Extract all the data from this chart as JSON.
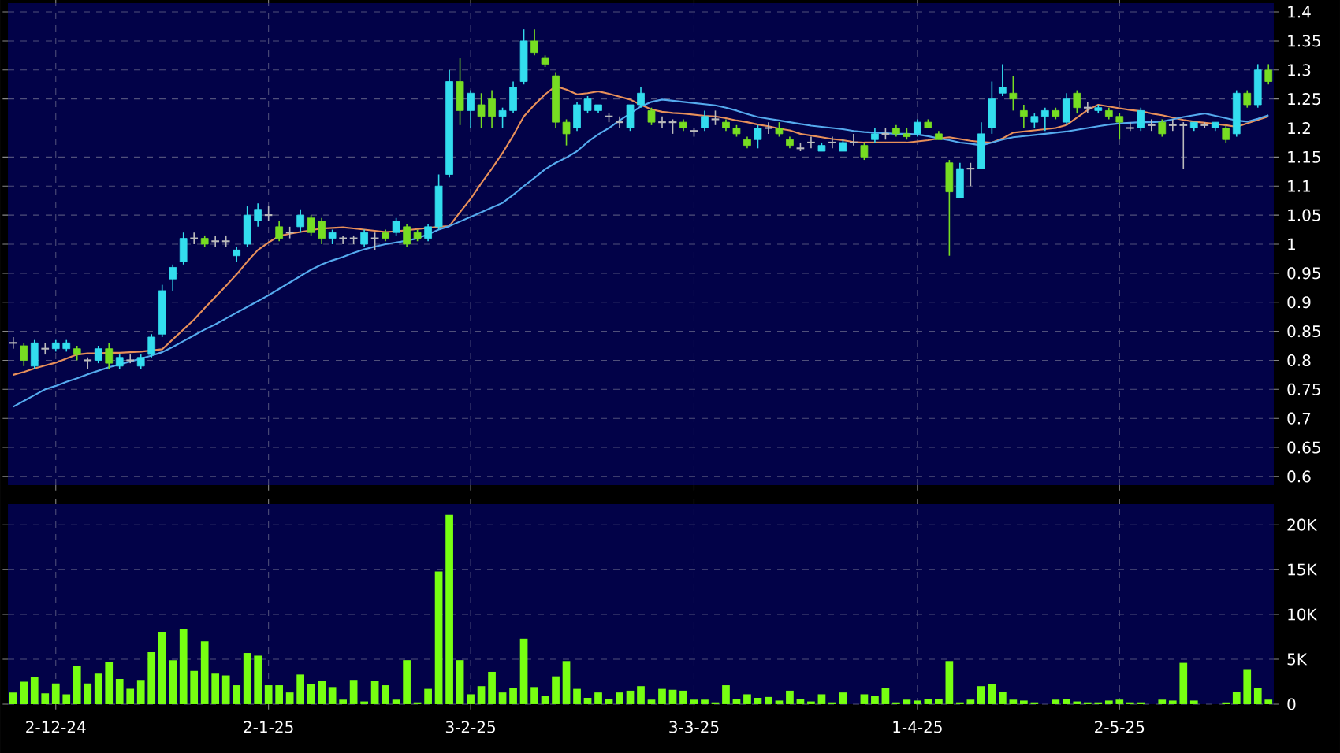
{
  "chart_data": [
    {
      "type": "candlestick",
      "tick_labels": "y",
      "grid": true,
      "ylim": [
        0.585,
        1.415
      ],
      "yticks": [
        0.6,
        0.65,
        0.7,
        0.75,
        0.8,
        0.85,
        0.9,
        0.95,
        1,
        1.05,
        1.1,
        1.15,
        1.2,
        1.25,
        1.3,
        1.35,
        1.4
      ],
      "categories": [
        null,
        null,
        null,
        null,
        null,
        null,
        null,
        null,
        null,
        null,
        null,
        null,
        null,
        null,
        null,
        null,
        null,
        null,
        null,
        null,
        null,
        null,
        null,
        null,
        null,
        null,
        null,
        null,
        null,
        null,
        null,
        null,
        null,
        null,
        null,
        null,
        null,
        null,
        null,
        null,
        null,
        null,
        null,
        null,
        null,
        null,
        null,
        null,
        null,
        null,
        null,
        null,
        null,
        null,
        null,
        null,
        null,
        null,
        null,
        null,
        null,
        null,
        null,
        null,
        null,
        null,
        null,
        null,
        null,
        null,
        null,
        null,
        null,
        null,
        null,
        null,
        null,
        null,
        null,
        null,
        null,
        null,
        null,
        null,
        null,
        null,
        null,
        null,
        null,
        null,
        null,
        null,
        null,
        null,
        null,
        null,
        null,
        null,
        null,
        null,
        null,
        null,
        null,
        null,
        null,
        null,
        null,
        null,
        null,
        null,
        null,
        null,
        null,
        null,
        null,
        null,
        null,
        null,
        null
      ],
      "ohlc": [
        [
          0.83,
          0.84,
          0.82,
          0.83
        ],
        [
          0.825,
          0.83,
          0.79,
          0.8
        ],
        [
          0.79,
          0.835,
          0.785,
          0.83
        ],
        [
          0.82,
          0.83,
          0.81,
          0.82
        ],
        [
          0.82,
          0.835,
          0.815,
          0.83
        ],
        [
          0.82,
          0.835,
          0.815,
          0.83
        ],
        [
          0.82,
          0.825,
          0.8,
          0.81
        ],
        [
          0.8,
          0.805,
          0.785,
          0.8
        ],
        [
          0.8,
          0.825,
          0.795,
          0.82
        ],
        [
          0.82,
          0.83,
          0.785,
          0.795
        ],
        [
          0.79,
          0.81,
          0.785,
          0.805
        ],
        [
          0.8,
          0.81,
          0.795,
          0.8
        ],
        [
          0.79,
          0.81,
          0.785,
          0.805
        ],
        [
          0.81,
          0.845,
          0.805,
          0.84
        ],
        [
          0.845,
          0.93,
          0.84,
          0.92
        ],
        [
          0.94,
          0.965,
          0.92,
          0.96
        ],
        [
          0.97,
          1.02,
          0.965,
          1.01
        ],
        [
          1.01,
          1.02,
          1.0,
          1.01
        ],
        [
          1.01,
          1.015,
          0.995,
          1.0
        ],
        [
          1.005,
          1.015,
          0.995,
          1.005
        ],
        [
          1.005,
          1.015,
          0.995,
          1.005
        ],
        [
          0.98,
          0.995,
          0.97,
          0.99
        ],
        [
          1.0,
          1.065,
          0.995,
          1.05
        ],
        [
          1.04,
          1.07,
          1.03,
          1.06
        ],
        [
          1.05,
          1.065,
          1.04,
          1.05
        ],
        [
          1.03,
          1.04,
          1.005,
          1.01
        ],
        [
          1.02,
          1.03,
          1.01,
          1.02
        ],
        [
          1.03,
          1.06,
          1.02,
          1.05
        ],
        [
          1.045,
          1.05,
          1.015,
          1.02
        ],
        [
          1.04,
          1.045,
          1.0,
          1.01
        ],
        [
          1.01,
          1.025,
          1.0,
          1.02
        ],
        [
          1.01,
          1.015,
          1.0,
          1.01
        ],
        [
          1.01,
          1.015,
          1.0,
          1.01
        ],
        [
          1.0,
          1.025,
          0.995,
          1.02
        ],
        [
          1.01,
          1.02,
          0.99,
          1.01
        ],
        [
          1.02,
          1.025,
          1.005,
          1.01
        ],
        [
          1.02,
          1.045,
          1.015,
          1.04
        ],
        [
          1.03,
          1.035,
          0.995,
          1.0
        ],
        [
          1.02,
          1.025,
          1.005,
          1.01
        ],
        [
          1.01,
          1.035,
          1.005,
          1.03
        ],
        [
          1.03,
          1.12,
          1.025,
          1.1
        ],
        [
          1.12,
          1.3,
          1.115,
          1.28
        ],
        [
          1.28,
          1.32,
          1.205,
          1.23
        ],
        [
          1.23,
          1.265,
          1.2,
          1.26
        ],
        [
          1.24,
          1.26,
          1.2,
          1.22
        ],
        [
          1.25,
          1.265,
          1.2,
          1.22
        ],
        [
          1.22,
          1.235,
          1.2,
          1.23
        ],
        [
          1.23,
          1.28,
          1.225,
          1.27
        ],
        [
          1.28,
          1.37,
          1.275,
          1.35
        ],
        [
          1.35,
          1.37,
          1.325,
          1.33
        ],
        [
          1.32,
          1.325,
          1.305,
          1.31
        ],
        [
          1.29,
          1.295,
          1.2,
          1.21
        ],
        [
          1.21,
          1.215,
          1.17,
          1.19
        ],
        [
          1.2,
          1.245,
          1.195,
          1.24
        ],
        [
          1.23,
          1.255,
          1.225,
          1.25
        ],
        [
          1.23,
          1.24,
          1.225,
          1.24
        ],
        [
          1.22,
          1.225,
          1.21,
          1.22
        ],
        [
          1.21,
          1.22,
          1.2,
          1.21
        ],
        [
          1.2,
          1.24,
          1.195,
          1.24
        ],
        [
          1.24,
          1.27,
          1.235,
          1.26
        ],
        [
          1.23,
          1.235,
          1.205,
          1.21
        ],
        [
          1.21,
          1.22,
          1.2,
          1.21
        ],
        [
          1.21,
          1.215,
          1.19,
          1.21
        ],
        [
          1.21,
          1.215,
          1.195,
          1.2
        ],
        [
          1.195,
          1.2,
          1.185,
          1.195
        ],
        [
          1.2,
          1.23,
          1.195,
          1.22
        ],
        [
          1.215,
          1.23,
          1.205,
          1.215
        ],
        [
          1.21,
          1.215,
          1.195,
          1.2
        ],
        [
          1.2,
          1.205,
          1.185,
          1.19
        ],
        [
          1.18,
          1.185,
          1.165,
          1.17
        ],
        [
          1.18,
          1.205,
          1.165,
          1.2
        ],
        [
          1.2,
          1.21,
          1.19,
          1.2
        ],
        [
          1.2,
          1.21,
          1.185,
          1.19
        ],
        [
          1.18,
          1.185,
          1.165,
          1.17
        ],
        [
          1.165,
          1.175,
          1.16,
          1.165
        ],
        [
          1.175,
          1.185,
          1.165,
          1.175
        ],
        [
          1.16,
          1.175,
          1.16,
          1.17
        ],
        [
          1.175,
          1.185,
          1.165,
          1.175
        ],
        [
          1.16,
          1.18,
          1.16,
          1.175
        ],
        [
          1.175,
          1.19,
          1.17,
          1.175
        ],
        [
          1.17,
          1.175,
          1.145,
          1.15
        ],
        [
          1.18,
          1.2,
          1.175,
          1.19
        ],
        [
          1.19,
          1.2,
          1.18,
          1.19
        ],
        [
          1.2,
          1.205,
          1.185,
          1.19
        ],
        [
          1.19,
          1.2,
          1.18,
          1.185
        ],
        [
          1.19,
          1.215,
          1.185,
          1.21
        ],
        [
          1.21,
          1.215,
          1.2,
          1.2
        ],
        [
          1.19,
          1.195,
          1.18,
          1.18
        ],
        [
          1.14,
          1.145,
          0.98,
          1.09
        ],
        [
          1.08,
          1.14,
          1.08,
          1.13
        ],
        [
          1.13,
          1.14,
          1.1,
          1.13
        ],
        [
          1.13,
          1.21,
          1.13,
          1.19
        ],
        [
          1.2,
          1.28,
          1.19,
          1.25
        ],
        [
          1.26,
          1.31,
          1.255,
          1.27
        ],
        [
          1.26,
          1.29,
          1.23,
          1.25
        ],
        [
          1.23,
          1.24,
          1.2,
          1.22
        ],
        [
          1.21,
          1.225,
          1.2,
          1.22
        ],
        [
          1.22,
          1.235,
          1.195,
          1.23
        ],
        [
          1.23,
          1.235,
          1.215,
          1.22
        ],
        [
          1.21,
          1.26,
          1.205,
          1.25
        ],
        [
          1.26,
          1.265,
          1.225,
          1.235
        ],
        [
          1.235,
          1.245,
          1.225,
          1.235
        ],
        [
          1.23,
          1.24,
          1.225,
          1.235
        ],
        [
          1.23,
          1.235,
          1.215,
          1.22
        ],
        [
          1.22,
          1.225,
          1.18,
          1.21
        ],
        [
          1.2,
          1.21,
          1.195,
          1.2
        ],
        [
          1.2,
          1.235,
          1.195,
          1.23
        ],
        [
          1.205,
          1.215,
          1.195,
          1.205
        ],
        [
          1.21,
          1.215,
          1.185,
          1.19
        ],
        [
          1.205,
          1.215,
          1.195,
          1.205
        ],
        [
          1.205,
          1.21,
          1.13,
          1.205
        ],
        [
          1.2,
          1.21,
          1.195,
          1.21
        ],
        [
          1.205,
          1.21,
          1.2,
          1.205
        ],
        [
          1.2,
          1.21,
          1.195,
          1.21
        ],
        [
          1.2,
          1.205,
          1.175,
          1.18
        ],
        [
          1.19,
          1.265,
          1.185,
          1.26
        ],
        [
          1.26,
          1.265,
          1.235,
          1.24
        ],
        [
          1.24,
          1.31,
          1.235,
          1.3
        ],
        [
          1.3,
          1.31,
          1.275,
          1.28
        ]
      ],
      "colors": [
        "#bbbbbb",
        "#77dd22",
        "#33ddee",
        "#bbbbbb",
        "#33ddee",
        "#33ddee",
        "#77dd22",
        "#bbbbbb",
        "#33ddee",
        "#77dd22",
        "#33ddee",
        "#bbbbbb",
        "#33ddee",
        "#33ddee",
        "#33ddee",
        "#33ddee",
        "#33ddee",
        "#bbbbbb",
        "#77dd22",
        "#bbbbbb",
        "#bbbbbb",
        "#33ddee",
        "#33ddee",
        "#33ddee",
        "#bbbbbb",
        "#77dd22",
        "#bbbbbb",
        "#33ddee",
        "#77dd22",
        "#77dd22",
        "#33ddee",
        "#bbbbbb",
        "#bbbbbb",
        "#33ddee",
        "#bbbbbb",
        "#77dd22",
        "#33ddee",
        "#77dd22",
        "#77dd22",
        "#33ddee",
        "#33ddee",
        "#33ddee",
        "#77dd22",
        "#33ddee",
        "#77dd22",
        "#77dd22",
        "#33ddee",
        "#33ddee",
        "#33ddee",
        "#77dd22",
        "#77dd22",
        "#77dd22",
        "#77dd22",
        "#33ddee",
        "#33ddee",
        "#33ddee",
        "#bbbbbb",
        "#bbbbbb",
        "#33ddee",
        "#33ddee",
        "#77dd22",
        "#bbbbbb",
        "#bbbbbb",
        "#77dd22",
        "#bbbbbb",
        "#33ddee",
        "#bbbbbb",
        "#77dd22",
        "#77dd22",
        "#77dd22",
        "#33ddee",
        "#bbbbbb",
        "#77dd22",
        "#77dd22",
        "#bbbbbb",
        "#bbbbbb",
        "#33ddee",
        "#bbbbbb",
        "#33ddee",
        "#bbbbbb",
        "#77dd22",
        "#33ddee",
        "#bbbbbb",
        "#77dd22",
        "#77dd22",
        "#33ddee",
        "#77dd22",
        "#77dd22",
        "#77dd22",
        "#33ddee",
        "#bbbbbb",
        "#33ddee",
        "#33ddee",
        "#33ddee",
        "#77dd22",
        "#77dd22",
        "#33ddee",
        "#33ddee",
        "#77dd22",
        "#33ddee",
        "#77dd22",
        "#bbbbbb",
        "#33ddee",
        "#77dd22",
        "#77dd22",
        "#bbbbbb",
        "#33ddee",
        "#bbbbbb",
        "#77dd22",
        "#bbbbbb",
        "#bbbbbb",
        "#33ddee",
        "#bbbbbb",
        "#33ddee",
        "#77dd22",
        "#33ddee",
        "#77dd22",
        "#33ddee",
        "#77dd22"
      ],
      "series": [
        {
          "type": "line",
          "color": "#e8905a",
          "values": [
            0.775,
            0.78,
            0.786,
            0.791,
            0.796,
            0.803,
            0.81,
            0.812,
            0.812,
            0.813,
            0.813,
            0.814,
            0.815,
            0.817,
            0.819,
            0.836,
            0.853,
            0.87,
            0.89,
            0.909,
            0.928,
            0.948,
            0.97,
            0.99,
            1.003,
            1.014,
            1.018,
            1.021,
            1.024,
            1.027,
            1.028,
            1.029,
            1.027,
            1.025,
            1.023,
            1.021,
            1.022,
            1.024,
            1.026,
            1.028,
            1.03,
            1.031,
            1.055,
            1.078,
            1.105,
            1.13,
            1.157,
            1.187,
            1.22,
            1.24,
            1.258,
            1.272,
            1.266,
            1.258,
            1.26,
            1.263,
            1.259,
            1.254,
            1.249,
            1.24,
            1.232,
            1.228,
            1.226,
            1.225,
            1.223,
            1.221,
            1.22,
            1.217,
            1.213,
            1.21,
            1.206,
            1.203,
            1.199,
            1.196,
            1.19,
            1.187,
            1.184,
            1.181,
            1.179,
            1.176,
            1.175,
            1.175,
            1.175,
            1.175,
            1.175,
            1.177,
            1.179,
            1.182,
            1.184,
            1.181,
            1.178,
            1.176,
            1.175,
            1.182,
            1.192,
            1.194,
            1.196,
            1.198,
            1.2,
            1.205,
            1.218,
            1.231,
            1.24,
            1.237,
            1.234,
            1.231,
            1.229,
            1.225,
            1.222,
            1.218,
            1.214,
            1.211,
            1.209,
            1.207,
            1.205,
            1.202,
            1.208,
            1.214,
            1.22
          ]
        },
        {
          "type": "line",
          "color": "#55aaee",
          "values": [
            0.72,
            0.73,
            0.74,
            0.75,
            0.756,
            0.763,
            0.769,
            0.776,
            0.782,
            0.788,
            0.793,
            0.798,
            0.803,
            0.808,
            0.814,
            0.823,
            0.833,
            0.843,
            0.853,
            0.862,
            0.872,
            0.882,
            0.892,
            0.902,
            0.912,
            0.923,
            0.934,
            0.945,
            0.956,
            0.965,
            0.972,
            0.978,
            0.985,
            0.991,
            0.996,
            1.0,
            1.003,
            1.006,
            1.01,
            1.017,
            1.025,
            1.031,
            1.039,
            1.047,
            1.055,
            1.063,
            1.071,
            1.085,
            1.1,
            1.114,
            1.129,
            1.14,
            1.149,
            1.16,
            1.176,
            1.189,
            1.2,
            1.213,
            1.225,
            1.237,
            1.245,
            1.249,
            1.247,
            1.245,
            1.243,
            1.241,
            1.239,
            1.235,
            1.23,
            1.224,
            1.219,
            1.216,
            1.213,
            1.21,
            1.207,
            1.204,
            1.202,
            1.2,
            1.198,
            1.195,
            1.193,
            1.192,
            1.191,
            1.19,
            1.19,
            1.189,
            1.186,
            1.182,
            1.179,
            1.175,
            1.173,
            1.17,
            1.175,
            1.18,
            1.184,
            1.186,
            1.188,
            1.19,
            1.192,
            1.194,
            1.197,
            1.2,
            1.203,
            1.206,
            1.208,
            1.209,
            1.21,
            1.21,
            1.211,
            1.215,
            1.219,
            1.222,
            1.225,
            1.221,
            1.217,
            1.213,
            1.211,
            1.216,
            1.222
          ]
        }
      ]
    },
    {
      "type": "bar",
      "grid": true,
      "color": "#77ff11",
      "ylim": [
        0,
        22.3
      ],
      "yticks": [
        0,
        {
          "value": 5,
          "label": "5K"
        },
        {
          "value": 10,
          "label": "10K"
        },
        {
          "value": 15,
          "label": "15K"
        },
        {
          "value": 20,
          "label": "20K"
        }
      ],
      "categories": [
        null,
        null,
        null,
        null,
        "2-12-24",
        null,
        null,
        null,
        null,
        null,
        null,
        null,
        null,
        null,
        null,
        null,
        null,
        null,
        null,
        null,
        null,
        null,
        null,
        null,
        "2-1-25",
        null,
        null,
        null,
        null,
        null,
        null,
        null,
        null,
        null,
        null,
        null,
        null,
        null,
        null,
        null,
        null,
        null,
        null,
        "3-2-25",
        null,
        null,
        null,
        null,
        null,
        null,
        null,
        null,
        null,
        null,
        null,
        null,
        null,
        null,
        null,
        null,
        null,
        null,
        null,
        null,
        "3-3-25",
        null,
        null,
        null,
        null,
        null,
        null,
        null,
        null,
        null,
        null,
        null,
        null,
        null,
        null,
        null,
        null,
        null,
        null,
        null,
        null,
        "1-4-25",
        null,
        null,
        null,
        null,
        null,
        null,
        null,
        null,
        null,
        null,
        null,
        null,
        null,
        null,
        null,
        null,
        null,
        null,
        "2-5-25",
        null,
        null,
        null,
        null,
        null,
        null,
        null,
        null,
        null,
        null,
        null,
        null,
        null,
        null
      ],
      "values": [
        1.3,
        2.5,
        3.0,
        1.2,
        2.3,
        1.1,
        4.3,
        2.3,
        3.4,
        4.7,
        2.8,
        1.7,
        2.7,
        5.8,
        8.0,
        4.9,
        8.4,
        3.7,
        7.0,
        3.4,
        3.2,
        2.1,
        5.7,
        5.4,
        2.1,
        2.1,
        1.3,
        3.3,
        2.2,
        2.6,
        1.9,
        0.5,
        2.7,
        0.3,
        2.6,
        2.1,
        0.5,
        4.9,
        0.2,
        1.7,
        14.8,
        21.1,
        4.9,
        1.1,
        2.0,
        3.6,
        1.3,
        1.8,
        7.3,
        1.9,
        0.9,
        3.1,
        4.8,
        1.7,
        0.7,
        1.3,
        0.6,
        1.3,
        1.5,
        2.0,
        0.5,
        1.7,
        1.6,
        1.5,
        0.5,
        0.5,
        0.2,
        2.1,
        0.6,
        1.1,
        0.7,
        0.8,
        0.4,
        1.5,
        0.6,
        0.3,
        1.1,
        0.2,
        1.3,
        0,
        1.1,
        0.9,
        1.8,
        0.2,
        0.5,
        0.4,
        0.6,
        0.6,
        4.8,
        0.2,
        0.5,
        2.0,
        2.2,
        1.4,
        0.5,
        0.4,
        0.2,
        0,
        0.5,
        0.6,
        0.3,
        0.2,
        0.2,
        0.4,
        0.5,
        0.2,
        0.2,
        0,
        0.5,
        0.4,
        4.6,
        0.4,
        0,
        0,
        0.2,
        1.4,
        3.9,
        1.8,
        0.5
      ]
    }
  ]
}
